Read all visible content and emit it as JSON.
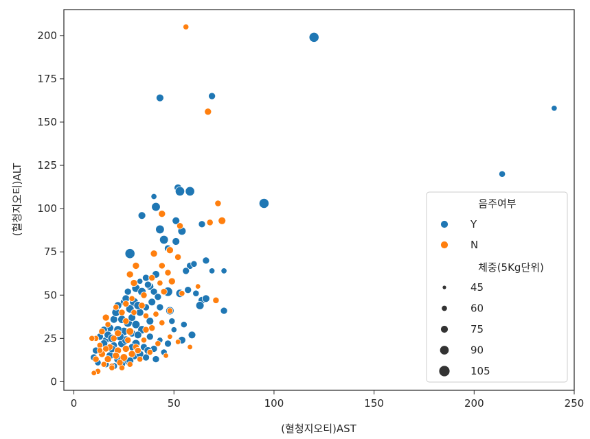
{
  "chart_data": {
    "type": "scatter",
    "title": "",
    "xlabel": "(혈청지오티)AST",
    "ylabel": "(혈청지오티)ALT",
    "xlim": [
      -5,
      250
    ],
    "ylim": [
      -5,
      215
    ],
    "xticks": [
      0,
      50,
      100,
      150,
      200,
      250
    ],
    "yticks": [
      0,
      25,
      50,
      75,
      100,
      125,
      150,
      175,
      200
    ],
    "grid": false,
    "legend_position": "lower-right",
    "hue_title": "음주여부",
    "size_title": "체중(5Kg단위)",
    "size_levels": [
      45,
      60,
      75,
      90,
      105
    ],
    "colors": {
      "Y": "#1f77b4",
      "N": "#ff7f0e"
    },
    "series": [
      {
        "name": "Y",
        "points": [
          [
            240,
            158,
            60
          ],
          [
            214,
            120,
            65
          ],
          [
            120,
            199,
            95
          ],
          [
            95,
            103,
            95
          ],
          [
            69,
            165,
            70
          ],
          [
            43,
            164,
            75
          ],
          [
            52,
            112,
            75
          ],
          [
            53,
            110,
            90
          ],
          [
            58,
            110,
            90
          ],
          [
            40,
            107,
            60
          ],
          [
            41,
            101,
            85
          ],
          [
            34,
            96,
            75
          ],
          [
            51,
            93,
            75
          ],
          [
            64,
            91,
            70
          ],
          [
            54,
            87,
            80
          ],
          [
            43,
            88,
            85
          ],
          [
            45,
            82,
            85
          ],
          [
            51,
            81,
            75
          ],
          [
            47,
            77,
            70
          ],
          [
            28,
            74,
            95
          ],
          [
            58,
            67,
            70
          ],
          [
            60,
            68,
            65
          ],
          [
            66,
            70,
            70
          ],
          [
            69,
            64,
            60
          ],
          [
            75,
            64,
            60
          ],
          [
            56,
            64,
            70
          ],
          [
            41,
            62,
            75
          ],
          [
            36,
            60,
            70
          ],
          [
            33,
            58,
            60
          ],
          [
            38,
            55,
            75
          ],
          [
            31,
            54,
            80
          ],
          [
            27,
            52,
            70
          ],
          [
            40,
            52,
            70
          ],
          [
            47,
            52,
            90
          ],
          [
            53,
            51,
            80
          ],
          [
            61,
            51,
            65
          ],
          [
            57,
            53,
            70
          ],
          [
            64,
            47,
            75
          ],
          [
            66,
            48,
            75
          ],
          [
            63,
            44,
            80
          ],
          [
            75,
            41,
            70
          ],
          [
            48,
            41,
            80
          ],
          [
            43,
            43,
            70
          ],
          [
            30,
            46,
            85
          ],
          [
            25,
            46,
            70
          ],
          [
            22,
            44,
            75
          ],
          [
            28,
            42,
            80
          ],
          [
            33,
            40,
            75
          ],
          [
            36,
            43,
            70
          ],
          [
            24,
            36,
            80
          ],
          [
            20,
            36,
            75
          ],
          [
            27,
            34,
            85
          ],
          [
            31,
            33,
            80
          ],
          [
            38,
            35,
            75
          ],
          [
            49,
            35,
            65
          ],
          [
            50,
            30,
            60
          ],
          [
            55,
            33,
            65
          ],
          [
            59,
            27,
            75
          ],
          [
            54,
            24,
            75
          ],
          [
            47,
            22,
            70
          ],
          [
            43,
            24,
            60
          ],
          [
            38,
            26,
            70
          ],
          [
            34,
            30,
            80
          ],
          [
            29,
            28,
            75
          ],
          [
            25,
            29,
            80
          ],
          [
            22,
            30,
            80
          ],
          [
            18,
            31,
            75
          ],
          [
            15,
            30,
            70
          ],
          [
            13,
            26,
            70
          ],
          [
            16,
            24,
            70
          ],
          [
            20,
            21,
            70
          ],
          [
            24,
            22,
            80
          ],
          [
            26,
            24,
            80
          ],
          [
            31,
            22,
            80
          ],
          [
            35,
            20,
            70
          ],
          [
            40,
            19,
            70
          ],
          [
            45,
            17,
            65
          ],
          [
            41,
            13,
            70
          ],
          [
            36,
            14,
            70
          ],
          [
            30,
            15,
            80
          ],
          [
            27,
            12,
            80
          ],
          [
            22,
            13,
            80
          ],
          [
            18,
            15,
            75
          ],
          [
            14,
            17,
            70
          ],
          [
            11,
            18,
            70
          ],
          [
            10,
            14,
            70
          ],
          [
            12,
            11,
            65
          ],
          [
            16,
            10,
            65
          ],
          [
            20,
            9,
            70
          ],
          [
            24,
            10,
            70
          ],
          [
            28,
            12,
            75
          ],
          [
            33,
            16,
            75
          ],
          [
            37,
            18,
            75
          ],
          [
            19,
            19,
            75
          ],
          [
            23,
            26,
            80
          ],
          [
            17,
            27,
            75
          ],
          [
            21,
            40,
            80
          ],
          [
            29,
            37,
            75
          ],
          [
            34,
            52,
            80
          ],
          [
            37,
            56,
            70
          ],
          [
            28,
            62,
            75
          ],
          [
            32,
            44,
            80
          ],
          [
            26,
            48,
            75
          ],
          [
            39,
            46,
            75
          ],
          [
            42,
            49,
            70
          ],
          [
            29,
            20,
            70
          ],
          [
            32,
            27,
            75
          ],
          [
            15,
            22,
            75
          ],
          [
            19,
            25,
            80
          ]
        ]
      },
      {
        "name": "N",
        "points": [
          [
            56,
            205,
            60
          ],
          [
            67,
            156,
            70
          ],
          [
            72,
            103,
            65
          ],
          [
            74,
            93,
            75
          ],
          [
            68,
            92,
            65
          ],
          [
            44,
            97,
            70
          ],
          [
            53,
            90,
            65
          ],
          [
            48,
            76,
            70
          ],
          [
            40,
            74,
            70
          ],
          [
            44,
            67,
            65
          ],
          [
            31,
            67,
            70
          ],
          [
            28,
            62,
            70
          ],
          [
            39,
            60,
            65
          ],
          [
            49,
            58,
            70
          ],
          [
            43,
            57,
            60
          ],
          [
            62,
            55,
            55
          ],
          [
            71,
            47,
            65
          ],
          [
            54,
            51,
            60
          ],
          [
            45,
            52,
            65
          ],
          [
            35,
            50,
            65
          ],
          [
            29,
            48,
            60
          ],
          [
            26,
            45,
            65
          ],
          [
            21,
            43,
            60
          ],
          [
            24,
            40,
            65
          ],
          [
            30,
            40,
            60
          ],
          [
            36,
            38,
            60
          ],
          [
            48,
            41,
            60
          ],
          [
            39,
            31,
            65
          ],
          [
            28,
            29,
            75
          ],
          [
            22,
            28,
            70
          ],
          [
            17,
            33,
            60
          ],
          [
            16,
            37,
            70
          ],
          [
            14,
            29,
            65
          ],
          [
            11,
            25,
            60
          ],
          [
            9,
            25,
            60
          ],
          [
            13,
            21,
            60
          ],
          [
            18,
            20,
            65
          ],
          [
            22,
            18,
            70
          ],
          [
            26,
            19,
            70
          ],
          [
            31,
            20,
            65
          ],
          [
            35,
            24,
            60
          ],
          [
            42,
            22,
            60
          ],
          [
            48,
            26,
            55
          ],
          [
            52,
            23,
            55
          ],
          [
            58,
            20,
            55
          ],
          [
            46,
            15,
            55
          ],
          [
            38,
            17,
            60
          ],
          [
            33,
            13,
            60
          ],
          [
            28,
            10,
            60
          ],
          [
            24,
            8,
            60
          ],
          [
            19,
            9,
            60
          ],
          [
            15,
            10,
            60
          ],
          [
            12,
            6,
            60
          ],
          [
            10,
            5,
            55
          ],
          [
            11,
            13,
            65
          ],
          [
            14,
            16,
            70
          ],
          [
            17,
            13,
            70
          ],
          [
            21,
            15,
            70
          ],
          [
            25,
            14,
            75
          ],
          [
            29,
            16,
            70
          ],
          [
            32,
            18,
            65
          ],
          [
            36,
            30,
            65
          ],
          [
            44,
            34,
            60
          ],
          [
            26,
            35,
            65
          ],
          [
            20,
            25,
            65
          ],
          [
            16,
            19,
            65
          ],
          [
            13,
            18,
            60
          ],
          [
            19,
            8,
            60
          ],
          [
            23,
            11,
            65
          ],
          [
            27,
            24,
            65
          ],
          [
            34,
            44,
            65
          ],
          [
            41,
            39,
            60
          ],
          [
            47,
            63,
            65
          ],
          [
            52,
            72,
            65
          ],
          [
            30,
            57,
            70
          ]
        ]
      }
    ]
  },
  "legend": {
    "hue_title": "음주여부",
    "hue_items": [
      "Y",
      "N"
    ],
    "size_title": "체중(5Kg단위)",
    "size_items": [
      "45",
      "60",
      "75",
      "90",
      "105"
    ]
  }
}
